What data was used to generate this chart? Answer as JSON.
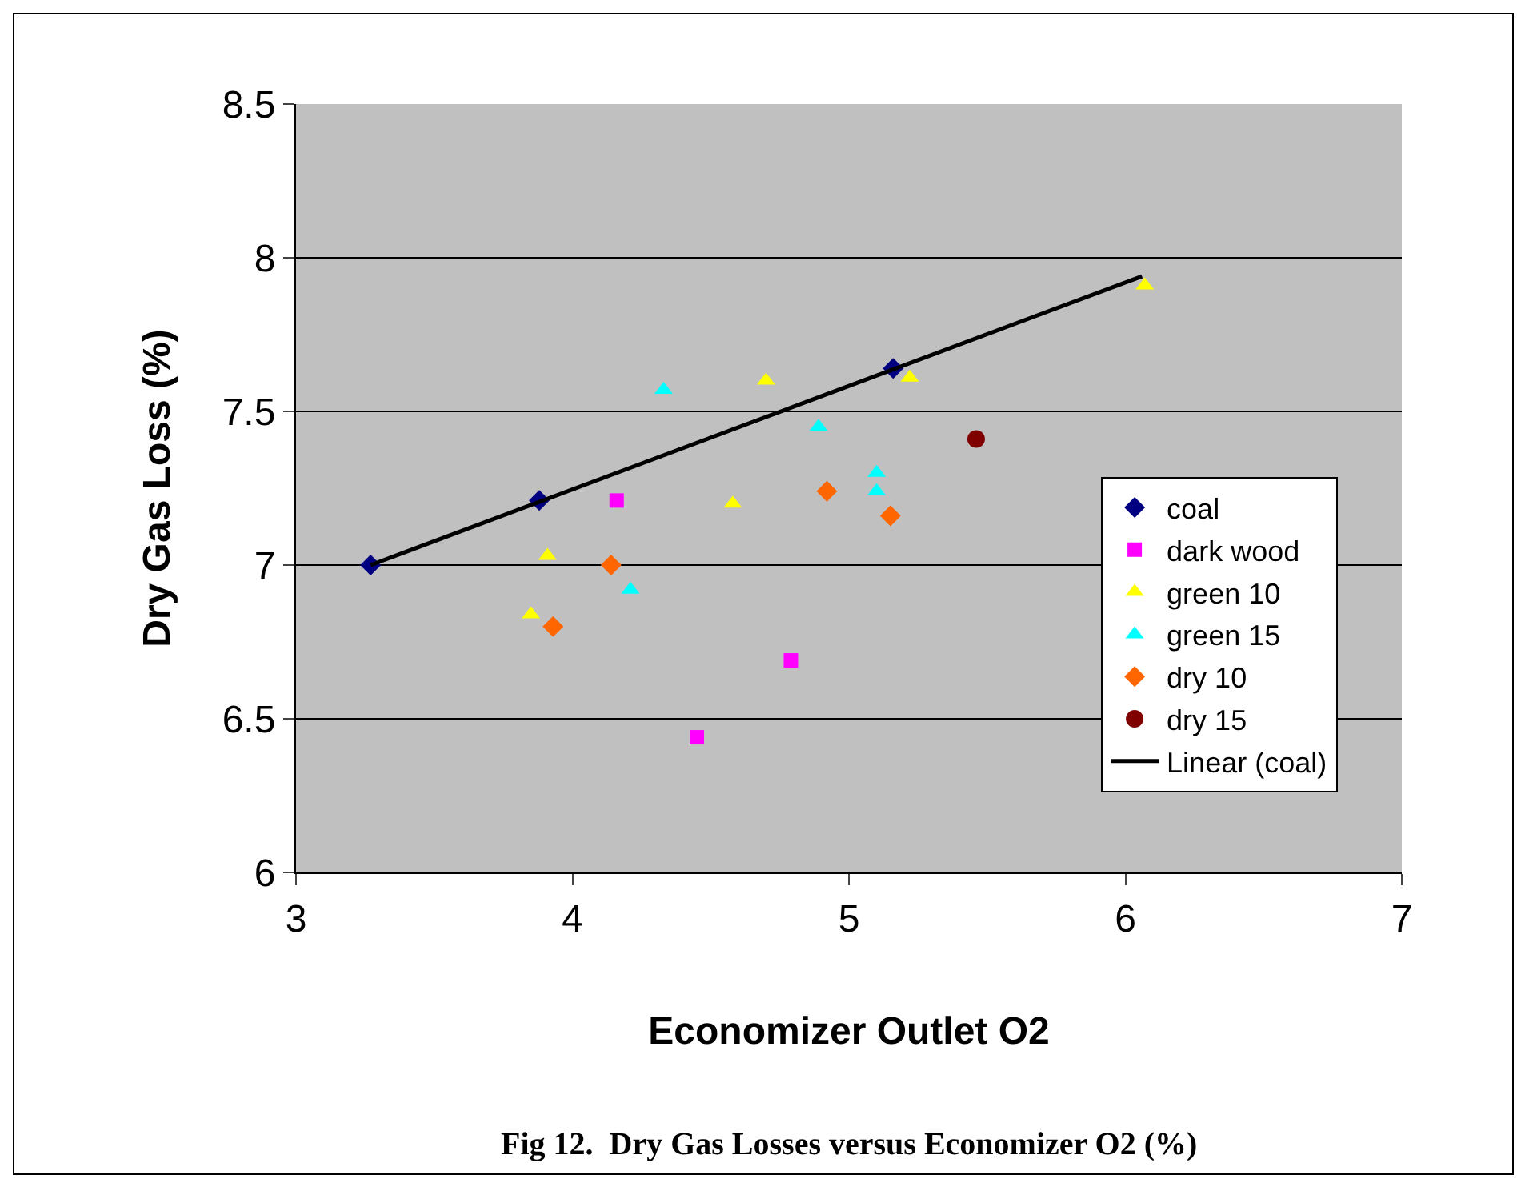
{
  "chart_data": {
    "type": "scatter",
    "xlabel": "Economizer Outlet O2",
    "ylabel": "Dry Gas Loss (%)",
    "xlim": [
      3,
      7
    ],
    "xticks": [
      3,
      4,
      5,
      6,
      7
    ],
    "ylim": [
      6,
      8.5
    ],
    "yticks": [
      6,
      6.5,
      7,
      7.5,
      8,
      8.5
    ],
    "grid": "y",
    "legend": "right",
    "annotations": [
      "Fig 12.  Dry Gas Losses versus Economizer O2 (%)"
    ],
    "series": [
      {
        "name": "coal",
        "color": "#000080",
        "marker": "diamond",
        "x": [
          3.27,
          3.88,
          5.16
        ],
        "values": [
          7.0,
          7.21,
          7.64
        ]
      },
      {
        "name": "dark wood",
        "color": "#ff00ff",
        "marker": "square",
        "x": [
          4.16,
          4.79,
          4.45
        ],
        "values": [
          7.21,
          6.69,
          6.44
        ]
      },
      {
        "name": "green 10",
        "color": "#ffff00",
        "marker": "triangle",
        "x": [
          3.91,
          3.85,
          4.58,
          4.7,
          5.22,
          6.07
        ],
        "values": [
          7.03,
          6.84,
          7.2,
          7.6,
          7.61,
          7.91
        ]
      },
      {
        "name": "green 15",
        "color": "#00ffff",
        "marker": "triangle",
        "x": [
          4.33,
          4.21,
          4.89,
          5.1,
          5.1
        ],
        "values": [
          7.57,
          6.92,
          7.45,
          7.3,
          7.24
        ]
      },
      {
        "name": "dry 10",
        "color": "#ff6600",
        "marker": "diamond",
        "x": [
          4.14,
          3.93,
          4.92,
          5.15
        ],
        "values": [
          7.0,
          6.8,
          7.24,
          7.16
        ]
      },
      {
        "name": "dry 15",
        "color": "#800000",
        "marker": "circle",
        "x": [
          5.46
        ],
        "values": [
          7.41
        ]
      },
      {
        "name": "Linear (coal)",
        "type": "line",
        "color": "#000000",
        "marker": "none",
        "x": [
          3.27,
          6.06
        ],
        "values": [
          7.0,
          7.94
        ]
      }
    ]
  }
}
